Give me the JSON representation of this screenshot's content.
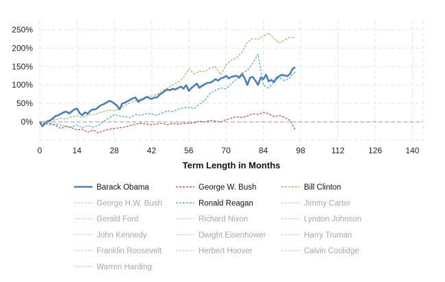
{
  "chart_data": {
    "type": "line",
    "xlabel": "Term Length in Months",
    "ylabel": "",
    "xlim": [
      0,
      144
    ],
    "ylim": [
      -50,
      275
    ],
    "x_ticks": [
      0,
      14,
      28,
      42,
      56,
      70,
      84,
      98,
      112,
      126,
      140
    ],
    "y_ticks": [
      0,
      50,
      100,
      150,
      200,
      250
    ],
    "y_tick_labels": [
      "0%",
      "50%",
      "100%",
      "150%",
      "200%",
      "250%"
    ],
    "zero_line": true,
    "grid": "dashed",
    "legend_position": "bottom",
    "series": [
      {
        "name": "Barack Obama",
        "color": "#4a7ebb",
        "dash": "solid",
        "visible": true,
        "x": [
          0,
          1,
          2,
          3,
          4,
          5,
          6,
          7,
          8,
          9,
          10,
          11,
          12,
          13,
          14,
          15,
          16,
          17,
          18,
          19,
          20,
          21,
          22,
          23,
          24,
          25,
          26,
          27,
          28,
          29,
          30,
          31,
          32,
          33,
          34,
          35,
          36,
          37,
          38,
          39,
          40,
          41,
          42,
          43,
          44,
          45,
          46,
          47,
          48,
          49,
          50,
          51,
          52,
          53,
          54,
          55,
          56,
          57,
          58,
          59,
          60,
          61,
          62,
          63,
          64,
          65,
          66,
          67,
          68,
          69,
          70,
          71,
          72,
          73,
          74,
          75,
          76,
          77,
          78,
          79,
          80,
          81,
          82,
          83,
          84,
          85,
          86,
          87,
          88,
          89,
          90,
          91,
          92,
          93,
          94,
          95,
          96
        ],
        "y": [
          0,
          -12,
          -4,
          2,
          4,
          10,
          16,
          18,
          22,
          26,
          28,
          23,
          28,
          34,
          36,
          24,
          18,
          26,
          22,
          30,
          34,
          34,
          40,
          45,
          48,
          52,
          57,
          55,
          50,
          44,
          34,
          50,
          52,
          56,
          60,
          64,
          66,
          54,
          60,
          62,
          68,
          65,
          62,
          66,
          66,
          74,
          78,
          84,
          88,
          86,
          90,
          88,
          92,
          96,
          90,
          100,
          84,
          92,
          98,
          104,
          92,
          98,
          102,
          106,
          106,
          110,
          116,
          112,
          118,
          120,
          125,
          118,
          122,
          124,
          125,
          120,
          130,
          118,
          100,
          120,
          122,
          112,
          100,
          120,
          116,
          128,
          110,
          114,
          108,
          120,
          124,
          128,
          126,
          124,
          130,
          144,
          148
        ]
      },
      {
        "name": "George W. Bush",
        "color": "#c0504d",
        "dash": "dashed",
        "visible": true,
        "x": [
          0,
          2,
          4,
          6,
          8,
          10,
          12,
          14,
          16,
          18,
          20,
          22,
          24,
          26,
          28,
          30,
          32,
          34,
          36,
          38,
          40,
          42,
          44,
          46,
          48,
          50,
          52,
          54,
          56,
          58,
          60,
          62,
          64,
          66,
          68,
          70,
          72,
          74,
          76,
          78,
          80,
          82,
          84,
          86,
          88,
          90,
          92,
          94,
          96
        ],
        "y": [
          0,
          -6,
          -4,
          -10,
          -18,
          -12,
          -16,
          -22,
          -20,
          -28,
          -22,
          -30,
          -24,
          -20,
          -18,
          -16,
          -14,
          -10,
          -6,
          -4,
          -6,
          -8,
          -6,
          -4,
          -8,
          -4,
          -6,
          -4,
          -4,
          -2,
          2,
          0,
          4,
          2,
          0,
          6,
          10,
          14,
          12,
          16,
          22,
          20,
          26,
          22,
          14,
          18,
          12,
          4,
          -22
        ]
      },
      {
        "name": "Bill Clinton",
        "color": "#9bbb59",
        "dash": "dashed",
        "visible": true,
        "x": [
          0,
          2,
          4,
          6,
          8,
          10,
          12,
          14,
          16,
          18,
          20,
          22,
          24,
          26,
          28,
          30,
          32,
          34,
          36,
          38,
          40,
          42,
          44,
          46,
          48,
          50,
          52,
          54,
          56,
          58,
          60,
          62,
          64,
          66,
          68,
          70,
          72,
          74,
          76,
          78,
          80,
          82,
          84,
          86,
          88,
          90,
          92,
          94,
          96
        ],
        "y": [
          0,
          2,
          4,
          6,
          10,
          8,
          14,
          16,
          12,
          18,
          20,
          24,
          28,
          32,
          30,
          36,
          44,
          52,
          58,
          62,
          68,
          70,
          74,
          84,
          92,
          100,
          108,
          120,
          144,
          130,
          138,
          136,
          146,
          150,
          128,
          154,
          168,
          174,
          190,
          216,
          226,
          224,
          232,
          242,
          226,
          214,
          222,
          230,
          228
        ]
      },
      {
        "name": "George H.W. Bush",
        "color": "#c7c7c7",
        "dash": "dashed",
        "visible": false,
        "x": [],
        "y": []
      },
      {
        "name": "Ronald Reagan",
        "color": "#4bacc6",
        "dash": "dashed",
        "visible": true,
        "x": [
          0,
          2,
          4,
          6,
          8,
          10,
          12,
          14,
          16,
          18,
          20,
          22,
          24,
          26,
          28,
          30,
          32,
          34,
          36,
          38,
          40,
          42,
          44,
          46,
          48,
          50,
          52,
          54,
          56,
          58,
          60,
          62,
          64,
          66,
          68,
          70,
          72,
          74,
          76,
          78,
          80,
          82,
          84,
          86,
          88,
          90,
          92,
          94,
          96
        ],
        "y": [
          0,
          -4,
          -8,
          -6,
          -10,
          -12,
          -14,
          -8,
          -16,
          -10,
          -14,
          -10,
          2,
          10,
          20,
          16,
          14,
          12,
          20,
          18,
          22,
          22,
          18,
          24,
          30,
          28,
          34,
          38,
          40,
          36,
          48,
          58,
          78,
          86,
          92,
          90,
          104,
          116,
          132,
          140,
          158,
          184,
          100,
          92,
          108,
          120,
          112,
          120,
          136
        ]
      },
      {
        "name": "Jimmy Carter",
        "color": "#c7c7c7",
        "dash": "dashed",
        "visible": false,
        "x": [],
        "y": []
      },
      {
        "name": "Gerald Ford",
        "color": "#c7c7c7",
        "dash": "dashed",
        "visible": false,
        "x": [],
        "y": []
      },
      {
        "name": "Richard Nixon",
        "color": "#c7c7c7",
        "dash": "dashed",
        "visible": false,
        "x": [],
        "y": []
      },
      {
        "name": "Lyndon Johnson",
        "color": "#c7c7c7",
        "dash": "dashed",
        "visible": false,
        "x": [],
        "y": []
      },
      {
        "name": "John Kennedy",
        "color": "#c7c7c7",
        "dash": "dashed",
        "visible": false,
        "x": [],
        "y": []
      },
      {
        "name": "Dwight Eisenhower",
        "color": "#c7c7c7",
        "dash": "dashed",
        "visible": false,
        "x": [],
        "y": []
      },
      {
        "name": "Harry Truman",
        "color": "#c7c7c7",
        "dash": "dashed",
        "visible": false,
        "x": [],
        "y": []
      },
      {
        "name": "Franklin Roosevelt",
        "color": "#c7c7c7",
        "dash": "dashed",
        "visible": false,
        "x": [],
        "y": []
      },
      {
        "name": "Herbert Hoover",
        "color": "#c7c7c7",
        "dash": "dashed",
        "visible": false,
        "x": [],
        "y": []
      },
      {
        "name": "Calvin Coolidge",
        "color": "#c7c7c7",
        "dash": "dashed",
        "visible": false,
        "x": [],
        "y": []
      },
      {
        "name": "Warren Harding",
        "color": "#c7c7c7",
        "dash": "dashed",
        "visible": false,
        "x": [],
        "y": []
      }
    ]
  }
}
